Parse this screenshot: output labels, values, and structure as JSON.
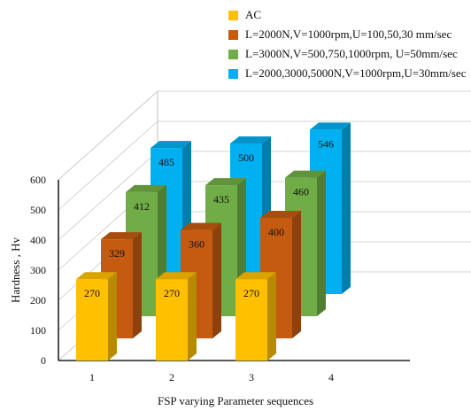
{
  "chart_data": {
    "type": "bar",
    "subtype": "3d-clustered-depth",
    "xlabel": "FSP  varying  Parameter sequences",
    "ylabel": "Hardness , Hv",
    "ylim": [
      0,
      600
    ],
    "yticks": [
      "0",
      "100",
      "200",
      "300",
      "400",
      "500",
      "600"
    ],
    "categories": [
      "1",
      "2",
      "3",
      "4"
    ],
    "grid": true,
    "legend_position": "top-right",
    "series": [
      {
        "name": "AC",
        "color": "#FFC000",
        "values": [
          270,
          270,
          270,
          null
        ]
      },
      {
        "name": "L=2000N,V=1000rpm,U=100,50,30 mm/sec",
        "color": "#C55A11",
        "values": [
          329,
          360,
          400,
          null
        ]
      },
      {
        "name": "L=3000N,V=500,750,1000rpm, U=50mm/sec",
        "color": "#70AD47",
        "values": [
          412,
          435,
          460,
          null
        ]
      },
      {
        "name": "L=2000,3000,5000N,V=1000rpm,U=30mm/sec",
        "color": "#00B0F0",
        "values": [
          485,
          500,
          546,
          null
        ]
      }
    ]
  }
}
